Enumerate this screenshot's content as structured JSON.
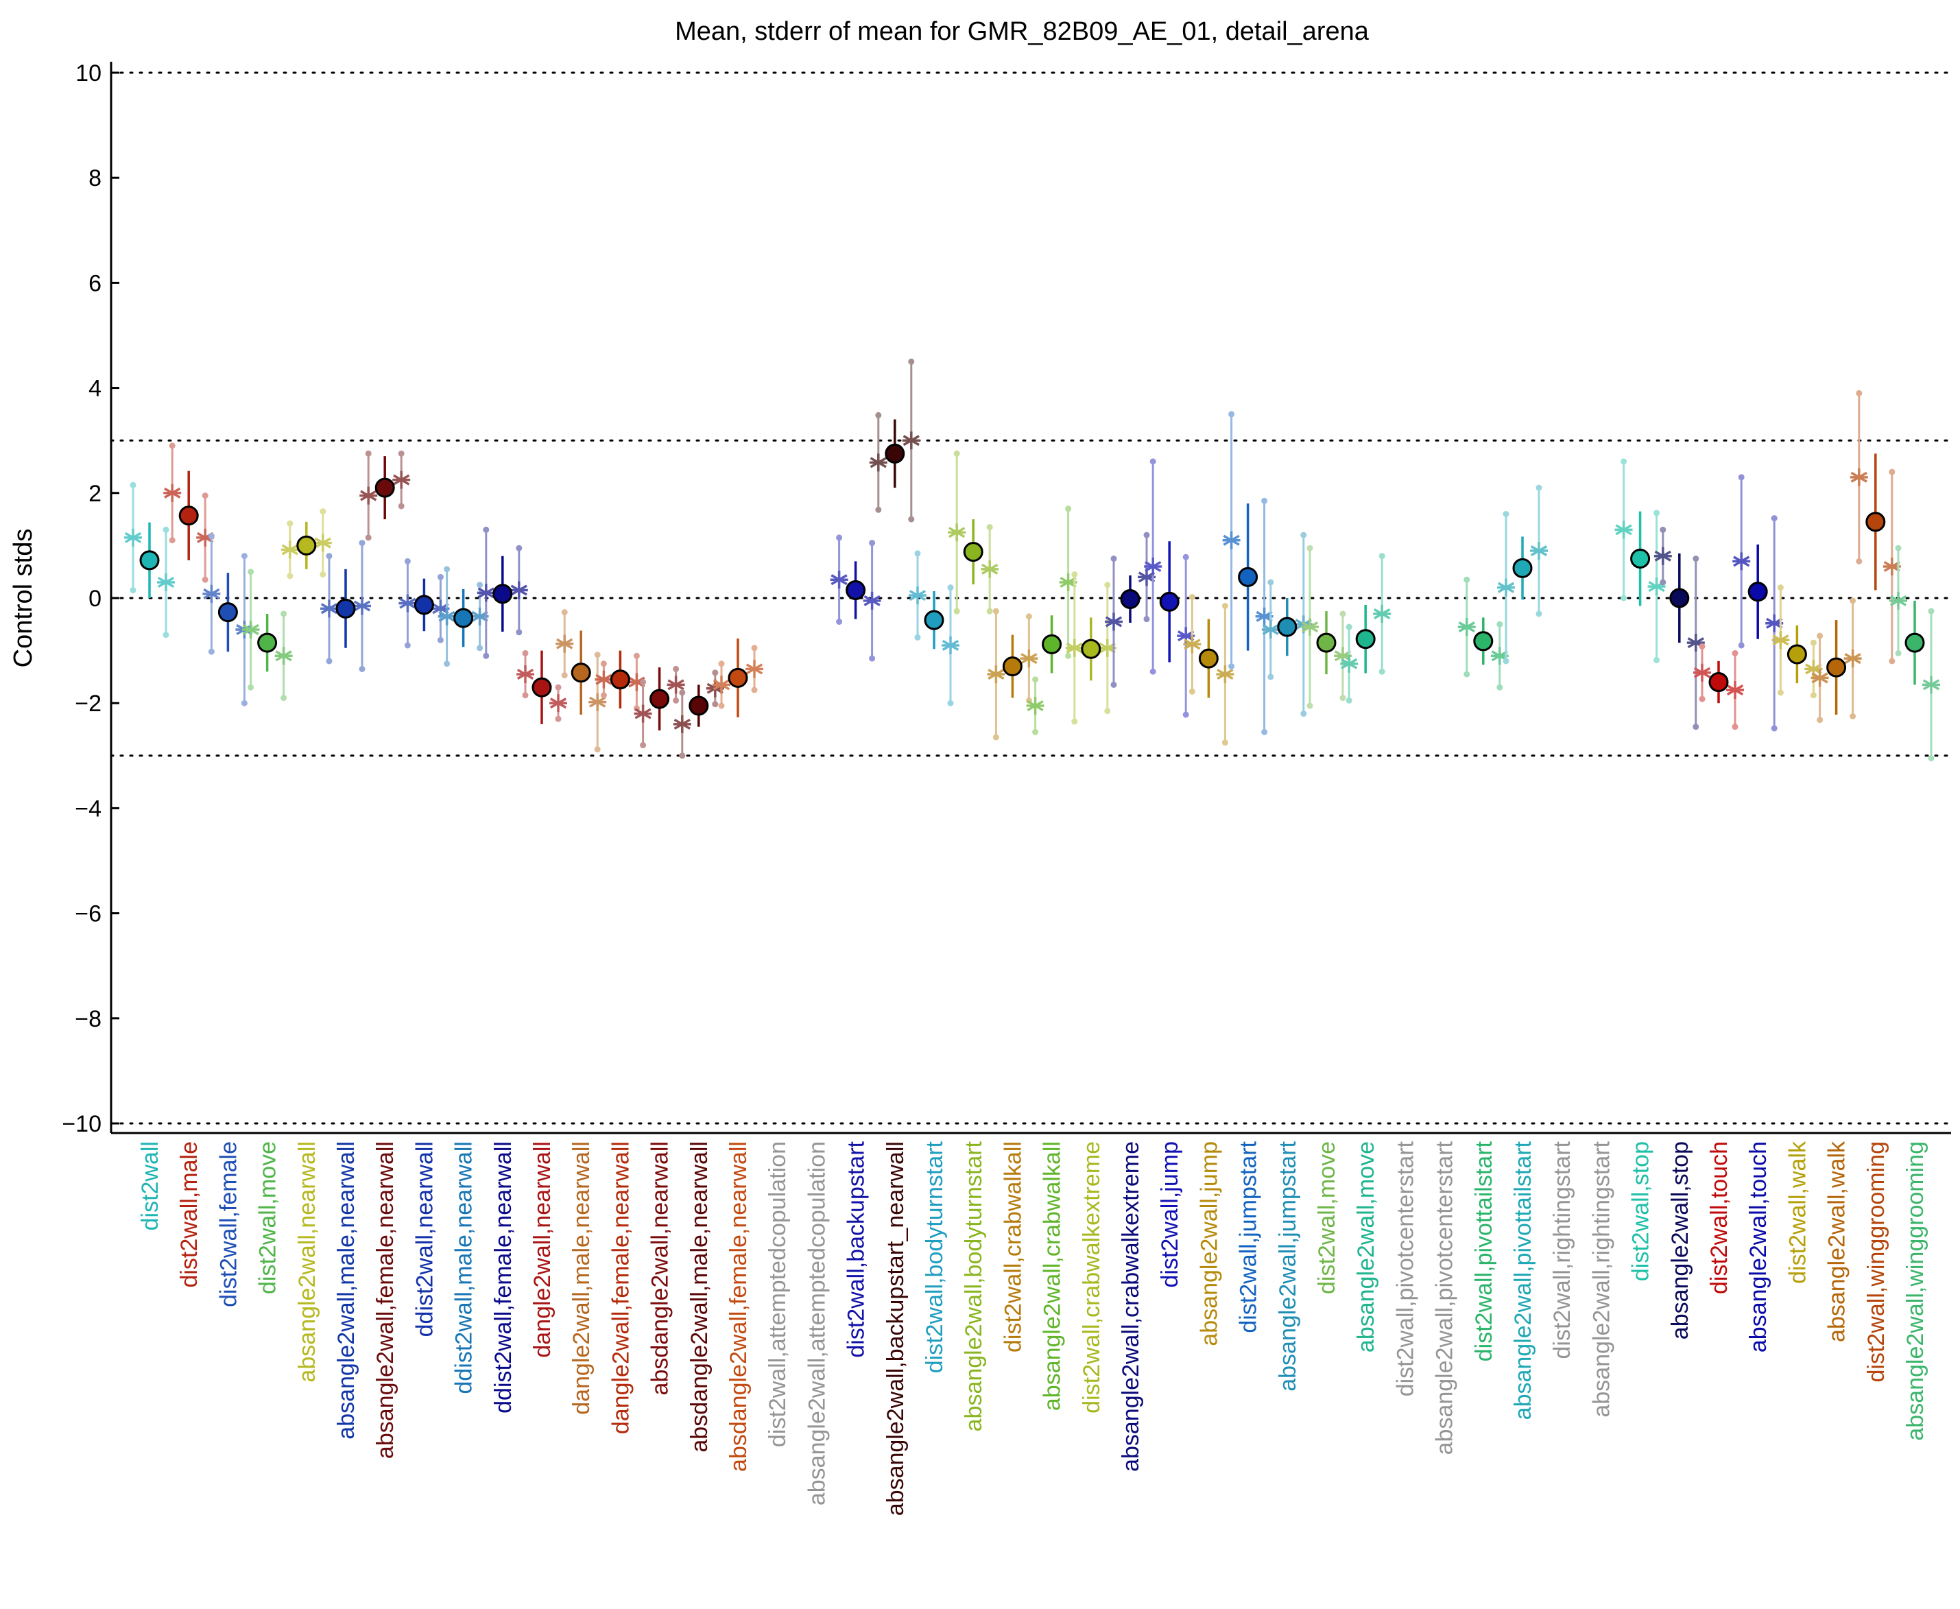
{
  "chart_data": {
    "type": "scatter",
    "title": "Mean, stderr of mean for GMR_82B09_AE_01, detail_arena",
    "xlabel": "",
    "ylabel": "Control stds",
    "ylim": [
      -10,
      10
    ],
    "yticks": [
      -10,
      -8,
      -6,
      -4,
      -2,
      0,
      2,
      4,
      6,
      8,
      10
    ],
    "reference_lines": [
      -10,
      -3,
      0,
      3,
      10
    ],
    "grid": false,
    "legend": "none",
    "categories": [
      {
        "label": "dist2wall",
        "color": "#1FB5B5",
        "mean": 0.72,
        "err": 0.72,
        "side": [
          1.15,
          0.3
        ],
        "sideErr": [
          1.0,
          1.0
        ]
      },
      {
        "label": "dist2wall,male",
        "color": "#B4230F",
        "mean": 1.57,
        "err": 0.85,
        "side": [
          2.0,
          1.15
        ],
        "sideErr": [
          0.9,
          0.8
        ]
      },
      {
        "label": "dist2wall,female",
        "color": "#1F4FB5",
        "mean": -0.27,
        "err": 0.75,
        "side": [
          0.08,
          -0.6
        ],
        "sideErr": [
          1.1,
          1.4
        ]
      },
      {
        "label": "dist2wall,move",
        "color": "#4FB548",
        "mean": -0.85,
        "err": 0.55,
        "side": [
          -0.6,
          -1.1
        ],
        "sideErr": [
          1.1,
          0.8
        ]
      },
      {
        "label": "absangle2wall,nearwall",
        "color": "#B5B81F",
        "mean": 1.0,
        "err": 0.45,
        "side": [
          0.92,
          1.05
        ],
        "sideErr": [
          0.5,
          0.6
        ]
      },
      {
        "label": "absangle2wall,male,nearwall",
        "color": "#1236A8",
        "mean": -0.2,
        "err": 0.75,
        "side": [
          -0.2,
          -0.15
        ],
        "sideErr": [
          1.0,
          1.2
        ]
      },
      {
        "label": "absangle2wall,female,nearwall",
        "color": "#6B0A0A",
        "mean": 2.1,
        "err": 0.6,
        "side": [
          1.95,
          2.25
        ],
        "sideErr": [
          0.8,
          0.5
        ]
      },
      {
        "label": "ddist2wall,nearwall",
        "color": "#1230A8",
        "mean": -0.13,
        "err": 0.5,
        "side": [
          -0.1,
          -0.2
        ],
        "sideErr": [
          0.8,
          0.6
        ]
      },
      {
        "label": "ddist2wall,male,nearwall",
        "color": "#1776B5",
        "mean": -0.38,
        "err": 0.55,
        "side": [
          -0.35,
          -0.35
        ],
        "sideErr": [
          0.9,
          0.6
        ]
      },
      {
        "label": "ddist2wall,female,nearwall",
        "color": "#0A0A8A",
        "mean": 0.08,
        "err": 0.72,
        "side": [
          0.1,
          0.15
        ],
        "sideErr": [
          1.2,
          0.8
        ]
      },
      {
        "label": "dangle2wall,nearwall",
        "color": "#A81414",
        "mean": -1.7,
        "err": 0.7,
        "side": [
          -1.45,
          -2.0
        ],
        "sideErr": [
          0.4,
          0.3
        ]
      },
      {
        "label": "dangle2wall,male,nearwall",
        "color": "#B5661F",
        "mean": -1.42,
        "err": 0.8,
        "side": [
          -0.87,
          -1.98
        ],
        "sideErr": [
          0.6,
          0.9
        ]
      },
      {
        "label": "dangle2wall,female,nearwall",
        "color": "#B42A0A",
        "mean": -1.55,
        "err": 0.55,
        "side": [
          -1.55,
          -1.6
        ],
        "sideErr": [
          0.3,
          0.5
        ]
      },
      {
        "label": "absdangle2wall,nearwall",
        "color": "#7A0A0A",
        "mean": -1.92,
        "err": 0.6,
        "side": [
          -2.2,
          -1.65
        ],
        "sideErr": [
          0.6,
          0.3
        ]
      },
      {
        "label": "absdangle2wall,male,nearwall",
        "color": "#5A0505",
        "mean": -2.05,
        "err": 0.4,
        "side": [
          -2.4,
          -1.72
        ],
        "sideErr": [
          0.6,
          0.3
        ]
      },
      {
        "label": "absdangle2wall,female,nearwall",
        "color": "#C24A10",
        "mean": -1.52,
        "err": 0.75,
        "side": [
          -1.65,
          -1.35
        ],
        "sideErr": [
          0.4,
          0.4
        ]
      },
      {
        "label": "dist2wall,attemptedcopulation",
        "color": "#959595",
        "mean": null
      },
      {
        "label": "absangle2wall,attemptedcopulation",
        "color": "#959595",
        "mean": null
      },
      {
        "label": "dist2wall,backupstart",
        "color": "#1212A8",
        "mean": 0.15,
        "err": 0.55,
        "side": [
          0.35,
          -0.05
        ],
        "sideErr": [
          0.8,
          1.1
        ]
      },
      {
        "label": "absangle2wall,backupstart_nearwall",
        "color": "#3A0505",
        "mean": 2.75,
        "err": 0.65,
        "side": [
          2.58,
          3.0
        ],
        "sideErr": [
          0.9,
          1.5
        ]
      },
      {
        "label": "dist2wall,bodyturnstart",
        "color": "#1F9EC0",
        "mean": -0.42,
        "err": 0.55,
        "side": [
          0.05,
          -0.9
        ],
        "sideErr": [
          0.8,
          1.1
        ]
      },
      {
        "label": "absangle2wall,bodyturnstart",
        "color": "#8AB51F",
        "mean": 0.88,
        "err": 0.62,
        "side": [
          1.25,
          0.55
        ],
        "sideErr": [
          1.5,
          0.8
        ]
      },
      {
        "label": "dist2wall,crabwalkall",
        "color": "#B57A0A",
        "mean": -1.3,
        "err": 0.6,
        "side": [
          -1.45,
          -1.15
        ],
        "sideErr": [
          1.2,
          0.8
        ]
      },
      {
        "label": "absangle2wall,crabwalkall",
        "color": "#5FB52A",
        "mean": -0.88,
        "err": 0.55,
        "side": [
          -2.05,
          0.3
        ],
        "sideErr": [
          0.5,
          1.4
        ]
      },
      {
        "label": "dist2wall,crabwalkextreme",
        "color": "#A8B81F",
        "mean": -0.97,
        "err": 0.6,
        "side": [
          -0.95,
          -0.95
        ],
        "sideErr": [
          1.4,
          1.2
        ]
      },
      {
        "label": "absangle2wall,crabwalkextreme",
        "color": "#0A0A7A",
        "mean": -0.02,
        "err": 0.45,
        "side": [
          -0.45,
          0.4
        ],
        "sideErr": [
          1.2,
          0.8
        ]
      },
      {
        "label": "dist2wall,jump",
        "color": "#1212B5",
        "mean": -0.07,
        "err": 1.15,
        "side": [
          0.6,
          -0.72
        ],
        "sideErr": [
          2.0,
          1.5
        ]
      },
      {
        "label": "absangle2wall,jump",
        "color": "#B58A0A",
        "mean": -1.15,
        "err": 0.75,
        "side": [
          -0.88,
          -1.45
        ],
        "sideErr": [
          0.9,
          1.3
        ]
      },
      {
        "label": "dist2wall,jumpstart",
        "color": "#1263C0",
        "mean": 0.4,
        "err": 1.4,
        "side": [
          1.1,
          -0.35
        ],
        "sideErr": [
          2.4,
          2.2
        ]
      },
      {
        "label": "absangle2wall,jumpstart",
        "color": "#1F8EB5",
        "mean": -0.55,
        "err": 0.55,
        "side": [
          -0.6,
          -0.5
        ],
        "sideErr": [
          0.9,
          1.7
        ]
      },
      {
        "label": "dist2wall,move",
        "color": "#6FB548",
        "mean": -0.85,
        "err": 0.6,
        "side": [
          -0.55,
          -1.1
        ],
        "sideErr": [
          1.5,
          0.8
        ]
      },
      {
        "label": "absangle2wall,move",
        "color": "#1FB58E",
        "mean": -0.78,
        "err": 0.65,
        "side": [
          -1.25,
          -0.3
        ],
        "sideErr": [
          0.7,
          1.1
        ]
      },
      {
        "label": "dist2wall,pivotcenterstart",
        "color": "#959595",
        "mean": null
      },
      {
        "label": "absangle2wall,pivotcenterstart",
        "color": "#959595",
        "mean": null
      },
      {
        "label": "dist2wall,pivottailstart",
        "color": "#2AB56A",
        "mean": -0.82,
        "err": 0.45,
        "side": [
          -0.55,
          -1.1
        ],
        "sideErr": [
          0.9,
          0.6
        ]
      },
      {
        "label": "absangle2wall,pivottailstart",
        "color": "#1FA8B5",
        "mean": 0.57,
        "err": 0.6,
        "side": [
          0.2,
          0.9
        ],
        "sideErr": [
          1.4,
          1.2
        ]
      },
      {
        "label": "dist2wall,rightingstart",
        "color": "#959595",
        "mean": null
      },
      {
        "label": "absangle2wall,rightingstart",
        "color": "#959595",
        "mean": null
      },
      {
        "label": "dist2wall,stop",
        "color": "#1FC0A8",
        "mean": 0.75,
        "err": 0.9,
        "side": [
          1.3,
          0.22
        ],
        "sideErr": [
          1.3,
          1.4
        ]
      },
      {
        "label": "absangle2wall,stop",
        "color": "#0A0A5A",
        "mean": 0.0,
        "err": 0.85,
        "side": [
          0.8,
          -0.85
        ],
        "sideErr": [
          0.5,
          1.6
        ]
      },
      {
        "label": "dist2wall,touch",
        "color": "#C00A0A",
        "mean": -1.6,
        "err": 0.4,
        "side": [
          -1.42,
          -1.75
        ],
        "sideErr": [
          0.5,
          0.7
        ]
      },
      {
        "label": "absangle2wall,touch",
        "color": "#0A0AA8",
        "mean": 0.12,
        "err": 0.9,
        "side": [
          0.7,
          -0.48
        ],
        "sideErr": [
          1.6,
          2.0
        ]
      },
      {
        "label": "dist2wall,walk",
        "color": "#B5A00A",
        "mean": -1.07,
        "err": 0.55,
        "side": [
          -0.8,
          -1.35
        ],
        "sideErr": [
          1.0,
          0.5
        ]
      },
      {
        "label": "absangle2wall,walk",
        "color": "#B5660A",
        "mean": -1.32,
        "err": 0.9,
        "side": [
          -1.52,
          -1.15
        ],
        "sideErr": [
          0.8,
          1.1
        ]
      },
      {
        "label": "dist2wall,winggrooming",
        "color": "#B5450A",
        "mean": 1.45,
        "err": 1.3,
        "side": [
          2.3,
          0.6
        ],
        "sideErr": [
          1.6,
          1.8
        ]
      },
      {
        "label": "absangle2wall,winggrooming",
        "color": "#3AB56A",
        "mean": -0.85,
        "err": 0.8,
        "side": [
          -0.05,
          -1.65
        ],
        "sideErr": [
          1.0,
          1.4
        ]
      }
    ]
  }
}
